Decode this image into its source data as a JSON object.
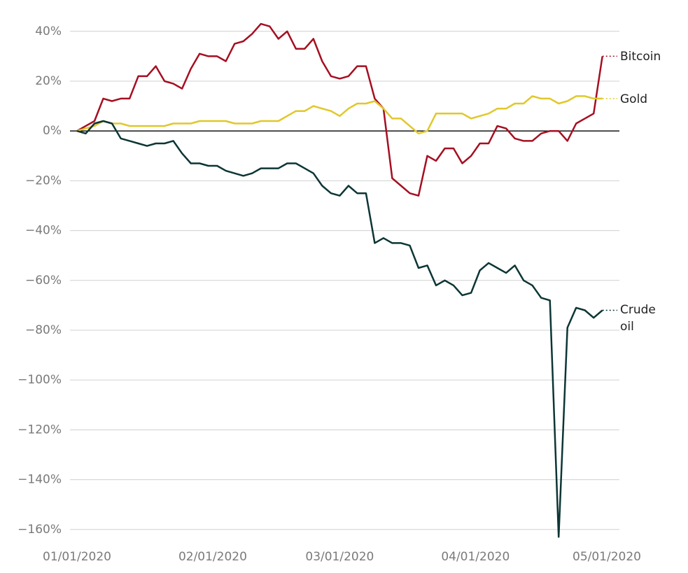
{
  "chart_data": {
    "type": "line",
    "x": [
      "01/01/2020",
      "01/03/2020",
      "01/05/2020",
      "01/07/2020",
      "01/09/2020",
      "01/11/2020",
      "01/13/2020",
      "01/15/2020",
      "01/17/2020",
      "01/19/2020",
      "01/21/2020",
      "01/23/2020",
      "01/25/2020",
      "01/27/2020",
      "01/29/2020",
      "01/31/2020",
      "02/02/2020",
      "02/04/2020",
      "02/06/2020",
      "02/08/2020",
      "02/10/2020",
      "02/12/2020",
      "02/14/2020",
      "02/16/2020",
      "02/18/2020",
      "02/20/2020",
      "02/22/2020",
      "02/24/2020",
      "02/26/2020",
      "02/28/2020",
      "03/01/2020",
      "03/03/2020",
      "03/05/2020",
      "03/07/2020",
      "03/09/2020",
      "03/11/2020",
      "03/13/2020",
      "03/15/2020",
      "03/17/2020",
      "03/19/2020",
      "03/21/2020",
      "03/23/2020",
      "03/25/2020",
      "03/27/2020",
      "03/29/2020",
      "03/31/2020",
      "04/02/2020",
      "04/04/2020",
      "04/06/2020",
      "04/08/2020",
      "04/10/2020",
      "04/12/2020",
      "04/14/2020",
      "04/16/2020",
      "04/18/2020",
      "04/20/2020",
      "04/22/2020",
      "04/24/2020",
      "04/26/2020",
      "04/28/2020",
      "04/30/2020"
    ],
    "series": [
      {
        "name": "Bitcoin",
        "color": "#a50f21",
        "values": [
          0,
          2,
          4,
          13,
          12,
          13,
          13,
          22,
          22,
          26,
          20,
          19,
          17,
          25,
          31,
          30,
          30,
          28,
          35,
          36,
          39,
          43,
          42,
          37,
          40,
          33,
          33,
          37,
          28,
          22,
          21,
          22,
          26,
          26,
          13,
          9,
          -19,
          -22,
          -25,
          -26,
          -10,
          -12,
          -7,
          -7,
          -13,
          -10,
          -5,
          -5,
          2,
          1,
          -3,
          -4,
          -4,
          -1,
          0,
          0,
          -4,
          3,
          5,
          7,
          30
        ]
      },
      {
        "name": "Gold",
        "color": "#e0c82a",
        "values": [
          0,
          1,
          2,
          4,
          3,
          3,
          2,
          2,
          2,
          2,
          2,
          3,
          3,
          3,
          4,
          4,
          4,
          4,
          3,
          3,
          3,
          4,
          4,
          4,
          6,
          8,
          8,
          10,
          9,
          8,
          6,
          9,
          11,
          11,
          12,
          9,
          5,
          5,
          2,
          -1,
          0,
          7,
          7,
          7,
          7,
          5,
          6,
          7,
          9,
          9,
          11,
          11,
          14,
          13,
          13,
          11,
          12,
          14,
          14,
          13,
          13
        ]
      },
      {
        "name": "Crude oil",
        "color": "#0d3535",
        "values": [
          0,
          -1,
          3,
          4,
          3,
          -3,
          -4,
          -5,
          -6,
          -5,
          -5,
          -4,
          -9,
          -13,
          -13,
          -14,
          -14,
          -16,
          -17,
          -18,
          -17,
          -15,
          -15,
          -15,
          -13,
          -13,
          -15,
          -17,
          -22,
          -25,
          -26,
          -22,
          -25,
          -25,
          -45,
          -43,
          -45,
          -45,
          -46,
          -55,
          -54,
          -62,
          -60,
          -62,
          -66,
          -65,
          -56,
          -53,
          -55,
          -57,
          -54,
          -60,
          -62,
          -67,
          -68,
          -163,
          -79,
          -71,
          -72,
          -75,
          -72
        ]
      }
    ],
    "xlim": [
      "01/01/2020",
      "05/01/2020"
    ],
    "xticks": [
      "01/01/2020",
      "02/01/2020",
      "03/01/2020",
      "04/01/2020",
      "05/01/2020"
    ],
    "ylim": [
      -164,
      45
    ],
    "yticks": [
      {
        "value": 40,
        "label": "40%"
      },
      {
        "value": 20,
        "label": "20%"
      },
      {
        "value": 0,
        "label": "0%"
      },
      {
        "value": -20,
        "label": "−20%"
      },
      {
        "value": -40,
        "label": "−40%"
      },
      {
        "value": -60,
        "label": "−60%"
      },
      {
        "value": -80,
        "label": "−80%"
      },
      {
        "value": -100,
        "label": "−100%"
      },
      {
        "value": -120,
        "label": "−120%"
      },
      {
        "value": -140,
        "label": "−140%"
      },
      {
        "value": -160,
        "label": "−160%"
      }
    ],
    "grid": true
  }
}
